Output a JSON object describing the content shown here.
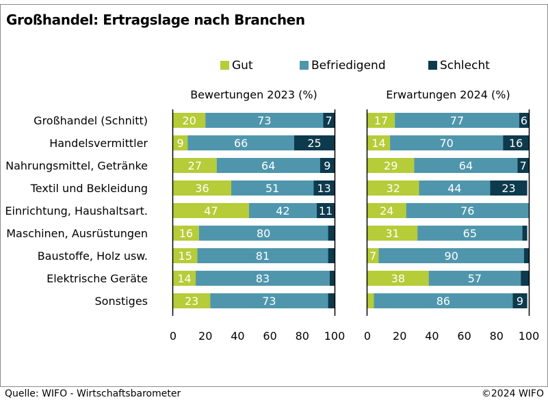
{
  "title": "Großhandel: Ertragslage nach Branchen",
  "footer": {
    "source": "Quelle: WIFO - Wirtschaftsbarometer",
    "copyright": "©2024 WIFO"
  },
  "colors": {
    "Gut": "#b6cc38",
    "Befriedigend": "#4f96ad",
    "Schlecht": "#0d3a4d"
  },
  "chart_data": {
    "type": "bar",
    "orientation": "horizontal",
    "stacked": true,
    "legend_position": "top",
    "categories": [
      "Großhandel (Schnitt)",
      "Handelsvermittler",
      "Nahrungsmittel, Getränke",
      "Textil und Bekleidung",
      "Einrichtung, Haushaltsart.",
      "Maschinen, Ausrüstungen",
      "Baustoffe, Holz usw.",
      "Elektrische Geräte",
      "Sonstiges"
    ],
    "legend": [
      "Gut",
      "Befriedigend",
      "Schlecht"
    ],
    "xlim": [
      0,
      100
    ],
    "xticks": [
      "0",
      "20",
      "40",
      "60",
      "80",
      "100"
    ],
    "panels": [
      {
        "title": "Bewertungen 2023 (%)",
        "series": [
          {
            "name": "Gut",
            "values": [
              20,
              9,
              27,
              36,
              47,
              16,
              15,
              14,
              23
            ]
          },
          {
            "name": "Befriedigend",
            "values": [
              73,
              66,
              64,
              51,
              42,
              80,
              81,
              83,
              73
            ]
          },
          {
            "name": "Schlecht",
            "values": [
              7,
              25,
              9,
              13,
              11,
              4,
              4,
              3,
              4
            ]
          }
        ],
        "labels": [
          [
            "20",
            "73",
            "7"
          ],
          [
            "9",
            "66",
            "25"
          ],
          [
            "27",
            "64",
            "9"
          ],
          [
            "36",
            "51",
            "13"
          ],
          [
            "47",
            "42",
            "11"
          ],
          [
            "16",
            "80",
            ""
          ],
          [
            "15",
            "81",
            ""
          ],
          [
            "14",
            "83",
            ""
          ],
          [
            "23",
            "73",
            ""
          ]
        ]
      },
      {
        "title": "Erwartungen 2024 (%)",
        "series": [
          {
            "name": "Gut",
            "values": [
              17,
              14,
              29,
              32,
              24,
              31,
              7,
              38,
              4
            ]
          },
          {
            "name": "Befriedigend",
            "values": [
              77,
              70,
              64,
              44,
              76,
              65,
              90,
              57,
              86
            ]
          },
          {
            "name": "Schlecht",
            "values": [
              6,
              16,
              7,
              23,
              0,
              3,
              3,
              5,
              9
            ]
          }
        ],
        "labels": [
          [
            "17",
            "77",
            "6"
          ],
          [
            "14",
            "70",
            "16"
          ],
          [
            "29",
            "64",
            "7"
          ],
          [
            "32",
            "44",
            "23"
          ],
          [
            "24",
            "76",
            ""
          ],
          [
            "31",
            "65",
            ""
          ],
          [
            "7",
            "90",
            ""
          ],
          [
            "38",
            "57",
            ""
          ],
          [
            "",
            "86",
            "9"
          ]
        ]
      }
    ]
  }
}
